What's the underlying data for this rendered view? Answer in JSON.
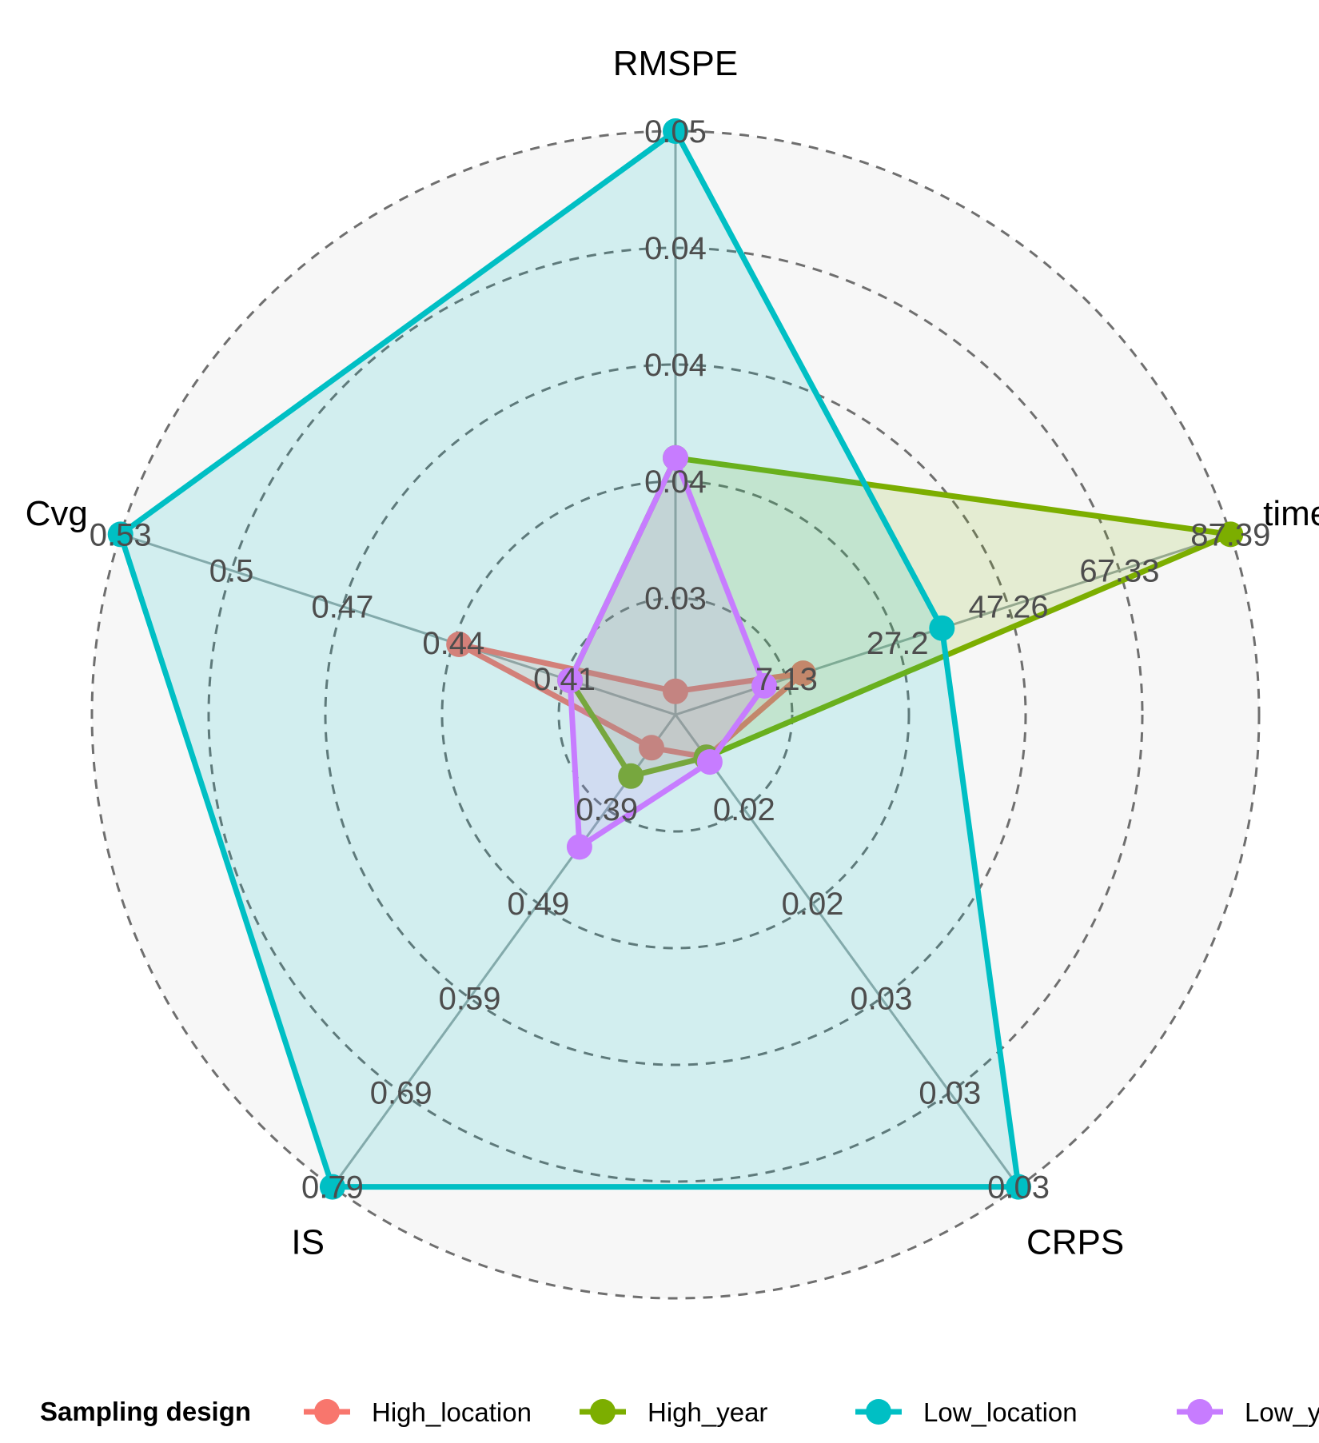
{
  "chart_data": {
    "type": "radar",
    "axes": [
      "RMSPE",
      "time",
      "CRPS",
      "IS",
      "Cvg"
    ],
    "axis_ticks": {
      "RMSPE": [
        "0.03",
        "0.04",
        "0.04",
        "0.04",
        "0.05"
      ],
      "time": [
        "7.13",
        "27.2",
        "47.26",
        "67.33",
        "87.39"
      ],
      "CRPS": [
        "0.02",
        "0.02",
        "0.03",
        "0.03",
        "0.03"
      ],
      "IS": [
        "0.39",
        "0.49",
        "0.59",
        "0.69",
        "0.79"
      ],
      "Cvg": [
        "0.41",
        "0.44",
        "0.47",
        "0.5",
        "0.53"
      ]
    },
    "grid": "dashed-circles",
    "legend": {
      "title": "Sampling design",
      "position": "bottom"
    },
    "series": [
      {
        "name": "High_location",
        "color": "#F8766D",
        "values": [
          0.2,
          1.15,
          0.45,
          0.35,
          1.95
        ]
      },
      {
        "name": "High_year",
        "color": "#7CAE00",
        "values": [
          2.2,
          5.0,
          0.45,
          0.65,
          0.95
        ]
      },
      {
        "name": "Low_location",
        "color": "#00BFC4",
        "values": [
          5.0,
          2.4,
          5.0,
          5.0,
          5.0
        ]
      },
      {
        "name": "Low_year",
        "color": "#C77CFF",
        "values": [
          2.2,
          0.8,
          0.5,
          1.4,
          0.95
        ]
      }
    ]
  }
}
